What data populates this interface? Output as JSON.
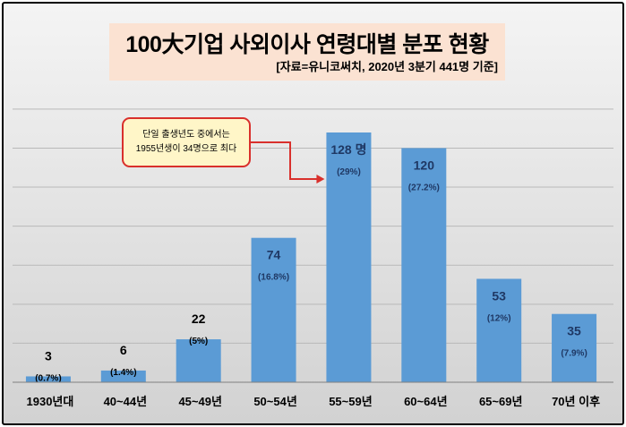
{
  "chart_data": {
    "type": "bar",
    "title": "100大기업 사외이사 연령대별 분포 현황",
    "subtitle": "[자료=유니코써치, 2020년 3분기 441명 기준]",
    "categories": [
      "1930년대",
      "40~44년",
      "45~49년",
      "50~54년",
      "55~59년",
      "60~64년",
      "65~69년",
      "70년 이후"
    ],
    "values": [
      3,
      6,
      22,
      74,
      128,
      120,
      53,
      35
    ],
    "value_labels": [
      "3",
      "6",
      "22",
      "74",
      "128 명",
      "120",
      "53",
      "35"
    ],
    "percent_labels": [
      "(0.7%)",
      "(1.4%)",
      "(5%)",
      "(16.8%)",
      "(29%)",
      "(27.2%)",
      "(12%)",
      "(7.9%)"
    ],
    "ylim": [
      0,
      140
    ],
    "grid": true,
    "bar_color": "#5b9bd5",
    "annotation": {
      "lines": [
        "단일 출생년도 중에서는",
        "1955년생이 34명으로 최다"
      ],
      "target": "55~59년",
      "border_color": "#d9302c",
      "fill_color": "#fff6c8"
    }
  }
}
